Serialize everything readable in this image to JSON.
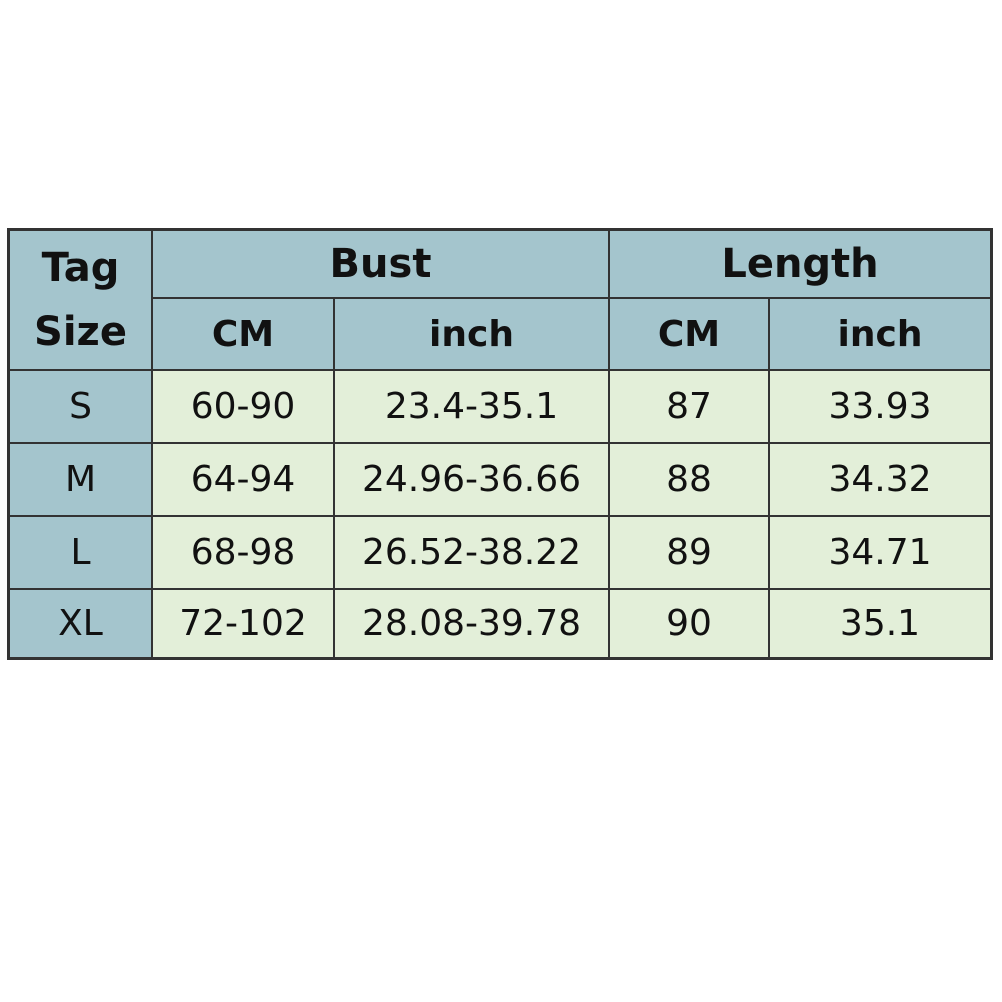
{
  "table": {
    "corner": [
      "Tag",
      "Size"
    ],
    "groups": [
      {
        "label": "Bust",
        "units": [
          "CM",
          "inch"
        ]
      },
      {
        "label": "Length",
        "units": [
          "CM",
          "inch"
        ]
      }
    ],
    "rows": [
      [
        "S",
        "60-90",
        "23.4-35.1",
        "87",
        "33.93"
      ],
      [
        "M",
        "64-94",
        "24.96-36.66",
        "88",
        "34.32"
      ],
      [
        "L",
        "68-98",
        "26.52-38.22",
        "89",
        "34.71"
      ],
      [
        "XL",
        "72-102",
        "28.08-39.78",
        "90",
        "35.1"
      ]
    ]
  }
}
